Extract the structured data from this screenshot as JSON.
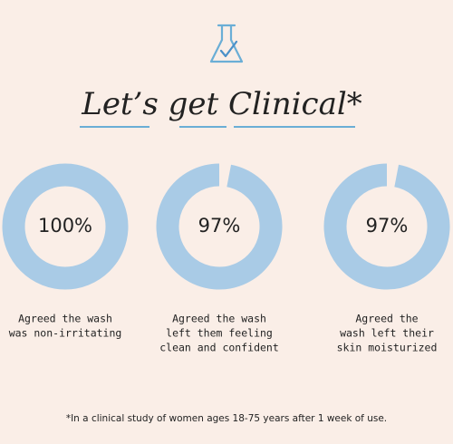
{
  "header": {
    "title": "Let’s get Clinical*"
  },
  "chart_data": [
    {
      "type": "donut",
      "values": [
        100
      ],
      "value_labels": [
        "100%"
      ],
      "ylim": [
        0,
        100
      ],
      "color": "#a9cbe6",
      "caption": [
        "Agreed the wash",
        "was non-irritating"
      ]
    },
    {
      "type": "donut",
      "values": [
        97
      ],
      "value_labels": [
        "97%"
      ],
      "ylim": [
        0,
        100
      ],
      "color": "#a9cbe6",
      "caption": [
        "Agreed the wash",
        "left them feeling",
        "clean and confident"
      ]
    },
    {
      "type": "donut",
      "values": [
        97
      ],
      "value_labels": [
        "97%"
      ],
      "ylim": [
        0,
        100
      ],
      "color": "#a9cbe6",
      "caption": [
        "Agreed the",
        "wash left their",
        "skin moisturized"
      ]
    }
  ],
  "footnote": "*In a clinical study of women ages 18-75 years after 1 week of use."
}
